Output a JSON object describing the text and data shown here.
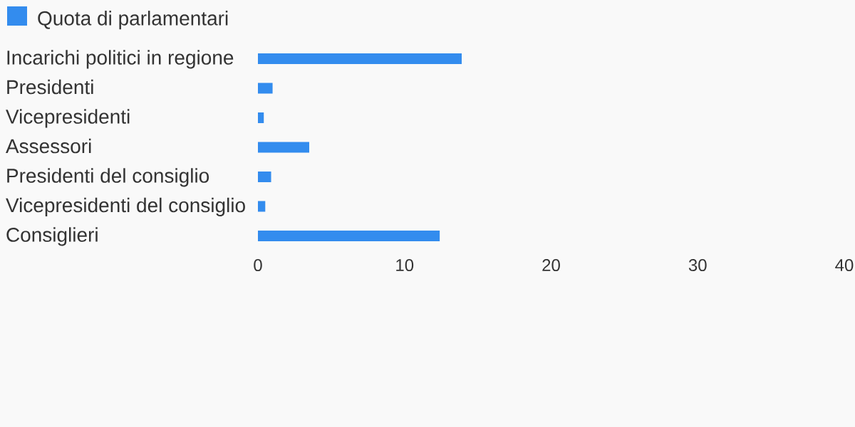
{
  "chart_data": {
    "type": "bar",
    "orientation": "horizontal",
    "categories": [
      "Incarichi politici in regione",
      "Presidenti",
      "Vicepresidenti",
      "Assessori",
      "Presidenti del consiglio",
      "Vicepresidenti del consiglio",
      "Consiglieri"
    ],
    "series": [
      {
        "name": "Quota di parlamentari",
        "color": "#338cee",
        "values": [
          13.9,
          1.0,
          0.4,
          3.5,
          0.9,
          0.5,
          12.4
        ]
      }
    ],
    "xlim": [
      0,
      40
    ],
    "xticks": [
      0,
      10,
      20,
      30,
      40
    ],
    "legend": "top left"
  }
}
